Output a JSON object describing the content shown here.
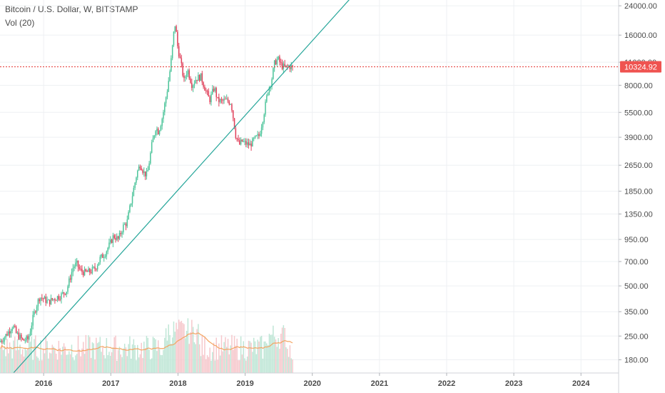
{
  "legend": {
    "title": "Bitcoin / U.S. Dollar, W, BITSTAMP",
    "volume_label": "Vol (20)"
  },
  "colors": {
    "up": "#26a69a",
    "down": "#ef5350",
    "up_bar": "#4cc49a",
    "down_bar": "#e0405a",
    "vol_up": "#bfe6d6",
    "vol_down": "#f6c8cc",
    "vol_ma": "#f4a460",
    "trendline": "#26a69a",
    "price_line": "#e53935",
    "price_tag_bg": "#ef5350",
    "grid": "#eef0f3",
    "axis_text": "#4a4a4a"
  },
  "chart_data": {
    "type": "candlestick",
    "title": "Bitcoin / U.S. Dollar, W, BITSTAMP",
    "y_scale": "log",
    "y_ticks": [
      "24000.00",
      "16000.00",
      "11000.00",
      "8000.00",
      "5500.00",
      "3900.00",
      "2650.00",
      "1850.00",
      "1350.00",
      "950.00",
      "700.00",
      "500.00",
      "350.00",
      "250.00",
      "180.00"
    ],
    "x_ticks": [
      "2016",
      "2017",
      "2018",
      "2019",
      "2020",
      "2021",
      "2022",
      "2023",
      "2024"
    ],
    "ylim": [
      150,
      26000
    ],
    "xlim": [
      2015.35,
      2024.55
    ],
    "grid": true,
    "last_price": "10324.92",
    "last_price_value": 10324.92,
    "trendline": {
      "start": [
        2015.55,
        150
      ],
      "end": [
        2020.6,
        27500
      ]
    },
    "price_path": [
      [
        2015.35,
        230
      ],
      [
        2015.42,
        245
      ],
      [
        2015.5,
        270
      ],
      [
        2015.55,
        290
      ],
      [
        2015.6,
        260
      ],
      [
        2015.7,
        235
      ],
      [
        2015.78,
        240
      ],
      [
        2015.85,
        320
      ],
      [
        2015.9,
        380
      ],
      [
        2015.95,
        430
      ],
      [
        2016.0,
        420
      ],
      [
        2016.08,
        400
      ],
      [
        2016.17,
        420
      ],
      [
        2016.27,
        440
      ],
      [
        2016.35,
        470
      ],
      [
        2016.45,
        650
      ],
      [
        2016.5,
        680
      ],
      [
        2016.55,
        620
      ],
      [
        2016.62,
        600
      ],
      [
        2016.7,
        610
      ],
      [
        2016.78,
        640
      ],
      [
        2016.85,
        730
      ],
      [
        2016.92,
        780
      ],
      [
        2017.0,
        900
      ],
      [
        2017.05,
        1000
      ],
      [
        2017.12,
        950
      ],
      [
        2017.2,
        1150
      ],
      [
        2017.25,
        1200
      ],
      [
        2017.33,
        1750
      ],
      [
        2017.4,
        2400
      ],
      [
        2017.45,
        2700
      ],
      [
        2017.5,
        2400
      ],
      [
        2017.55,
        2300
      ],
      [
        2017.62,
        3500
      ],
      [
        2017.68,
        4500
      ],
      [
        2017.72,
        4200
      ],
      [
        2017.78,
        5200
      ],
      [
        2017.85,
        7500
      ],
      [
        2017.9,
        10500
      ],
      [
        2017.95,
        17000
      ],
      [
        2017.97,
        19000
      ],
      [
        2018.0,
        14000
      ],
      [
        2018.05,
        11000
      ],
      [
        2018.1,
        8500
      ],
      [
        2018.15,
        10000
      ],
      [
        2018.22,
        8000
      ],
      [
        2018.28,
        8800
      ],
      [
        2018.35,
        9000
      ],
      [
        2018.42,
        7500
      ],
      [
        2018.48,
        6500
      ],
      [
        2018.55,
        7800
      ],
      [
        2018.6,
        6500
      ],
      [
        2018.65,
        6400
      ],
      [
        2018.72,
        6500
      ],
      [
        2018.8,
        6300
      ],
      [
        2018.87,
        4000
      ],
      [
        2018.92,
        3500
      ],
      [
        2018.96,
        3700
      ],
      [
        2019.0,
        3600
      ],
      [
        2019.08,
        3500
      ],
      [
        2019.15,
        3800
      ],
      [
        2019.22,
        4000
      ],
      [
        2019.28,
        5200
      ],
      [
        2019.35,
        7500
      ],
      [
        2019.4,
        8500
      ],
      [
        2019.45,
        11000
      ],
      [
        2019.5,
        11500
      ],
      [
        2019.55,
        10500
      ],
      [
        2019.6,
        10200
      ],
      [
        2019.65,
        10400
      ],
      [
        2019.7,
        10324.92
      ]
    ],
    "volume": {
      "ma_label": "Vol (20)",
      "max": 45000
    }
  }
}
